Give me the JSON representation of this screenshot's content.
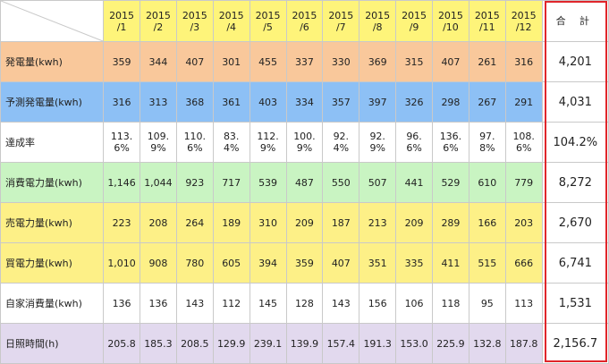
{
  "header": {
    "months": [
      "2015\n/1",
      "2015\n/2",
      "2015\n/3",
      "2015\n/4",
      "2015\n/5",
      "2015\n/6",
      "2015\n/7",
      "2015\n/8",
      "2015\n/9",
      "2015\n/10",
      "2015\n/11",
      "2015\n/12"
    ],
    "total_label": "合 計"
  },
  "rows": [
    {
      "label": "発電量(kwh)",
      "values": [
        "359",
        "344",
        "407",
        "301",
        "455",
        "337",
        "330",
        "369",
        "315",
        "407",
        "261",
        "316"
      ],
      "total": "4,201"
    },
    {
      "label": "予測発電量(kwh)",
      "values": [
        "316",
        "313",
        "368",
        "361",
        "403",
        "334",
        "357",
        "397",
        "326",
        "298",
        "267",
        "291"
      ],
      "total": "4,031"
    },
    {
      "label": "達成率",
      "values": [
        "113.\n6%",
        "109.\n9%",
        "110.\n6%",
        "83.\n4%",
        "112.\n9%",
        "100.\n9%",
        "92.\n4%",
        "92.\n9%",
        "96.\n6%",
        "136.\n6%",
        "97.\n8%",
        "108.\n6%"
      ],
      "total": "104.2%"
    },
    {
      "label": "消費電力量(kwh)",
      "values": [
        "1,146",
        "1,044",
        "923",
        "717",
        "539",
        "487",
        "550",
        "507",
        "441",
        "529",
        "610",
        "779"
      ],
      "total": "8,272"
    },
    {
      "label": "売電力量(kwh)",
      "values": [
        "223",
        "208",
        "264",
        "189",
        "310",
        "209",
        "187",
        "213",
        "209",
        "289",
        "166",
        "203"
      ],
      "total": "2,670"
    },
    {
      "label": "買電力量(kwh)",
      "values": [
        "1,010",
        "908",
        "780",
        "605",
        "394",
        "359",
        "407",
        "351",
        "335",
        "411",
        "515",
        "666"
      ],
      "total": "6,741"
    },
    {
      "label": "自家消費量(kwh)",
      "values": [
        "136",
        "136",
        "143",
        "112",
        "145",
        "128",
        "143",
        "156",
        "106",
        "118",
        "95",
        "113"
      ],
      "total": "1,531"
    },
    {
      "label": "日照時間(h)",
      "values": [
        "205.8",
        "185.3",
        "208.5",
        "129.9",
        "239.1",
        "139.9",
        "157.4",
        "191.3",
        "153.0",
        "225.9",
        "132.8",
        "187.8"
      ],
      "total": "2,156.7"
    }
  ],
  "colors": {
    "header_bg": "#fef47a",
    "gen_bg": "#f9c89b",
    "pred_bg": "#8dc0f5",
    "cons_bg": "#c9f4c2",
    "sell_buy_bg": "#fdf087",
    "sun_bg": "#e2d9ee",
    "total_border": "#e0262b"
  }
}
